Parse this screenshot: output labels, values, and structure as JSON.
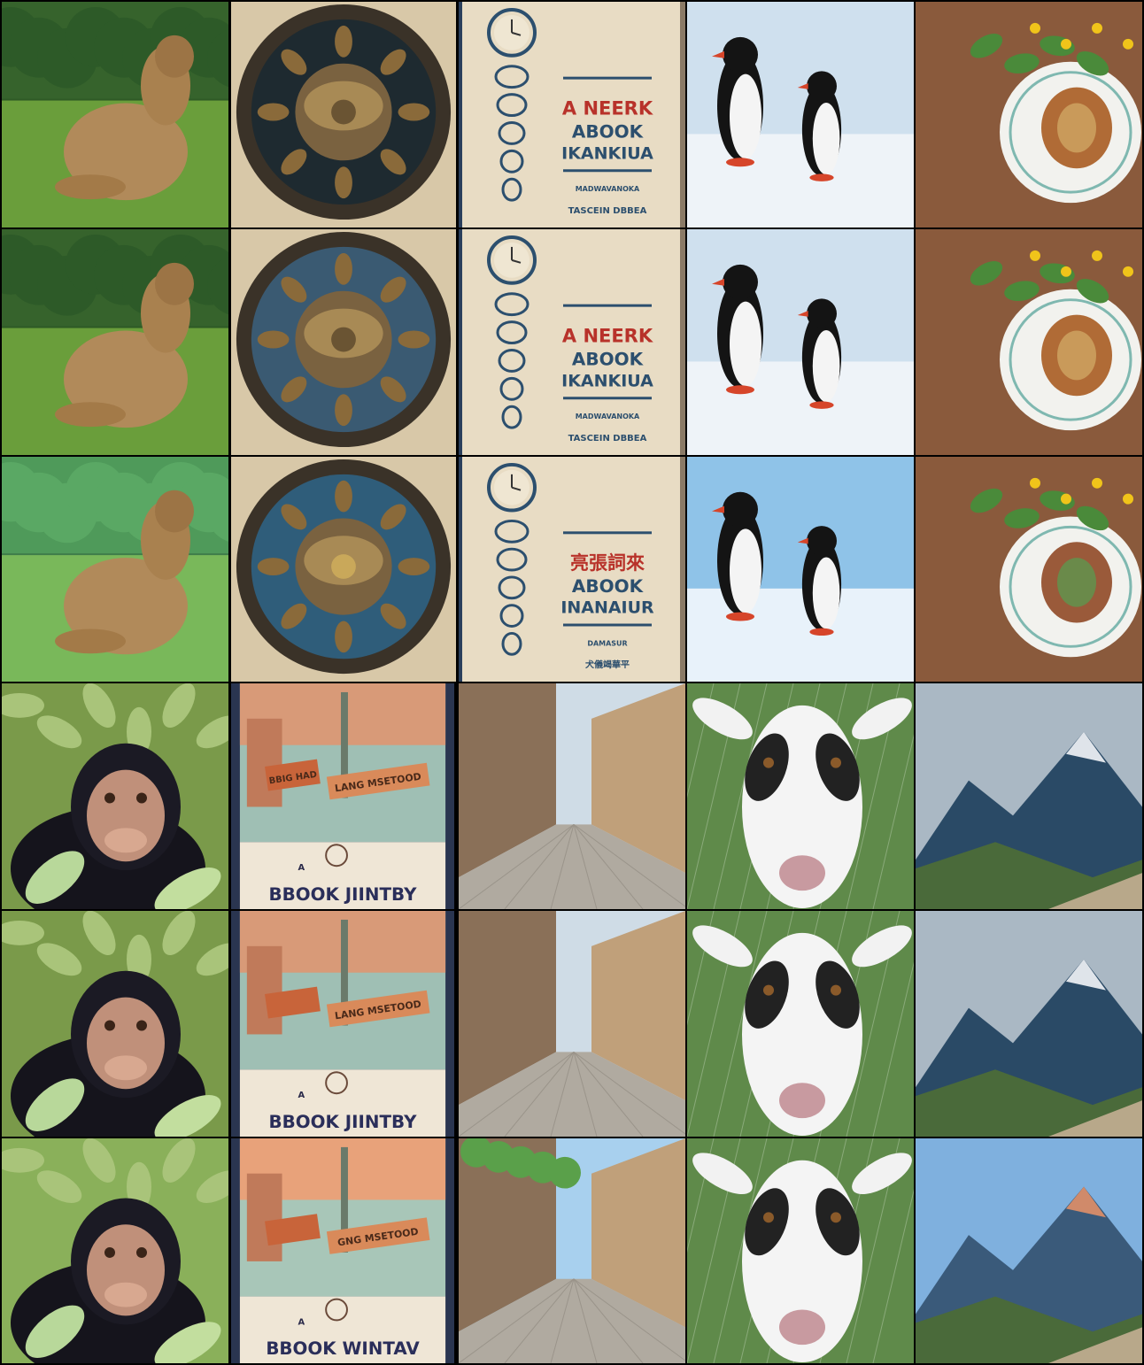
{
  "grid": {
    "rows": 6,
    "cols": 5,
    "groups": [
      {
        "rows": [
          "photo",
          "reconstruction",
          "stylized"
        ],
        "subjects": [
          "capybara",
          "door-knocker",
          "book-cover-clock",
          "penguins",
          "pastry-plate"
        ]
      },
      {
        "rows": [
          "photo",
          "reconstruction",
          "stylized"
        ],
        "subjects": [
          "chimpanzee",
          "book-cover-billboard",
          "city-street",
          "goat",
          "mountain"
        ]
      }
    ]
  },
  "book1": {
    "row1": {
      "line1": "A NEERK",
      "line2": "ABOOK",
      "line3": "IKANKIUA",
      "small1": "MADWAVANOKA",
      "small2": "TASCEIN DBBEA"
    },
    "row2": {
      "line1": "A NEERK",
      "line2": "ABOOK",
      "line3": "IKANKIUA",
      "small1": "MADWAVANOKA",
      "small2": "TASCEIN DBBEA"
    },
    "row3": {
      "line1": "亮張詞來",
      "line2": "ABOOK",
      "line3": "INANAIUR",
      "small1": "DAMASUR",
      "small2": "犬儀竭華平"
    }
  },
  "book2": {
    "row1": {
      "sign1": "BBIG HAD",
      "sign2": "LANG MSETOOD",
      "small": "A",
      "title": "BBOOK JIINTBY"
    },
    "row2": {
      "sign1": "",
      "sign2": "LANG MSETOOD",
      "small": "A",
      "title": "BBOOK JIINTBY"
    },
    "row3": {
      "sign1": "",
      "sign2": "GNG MSETOOD",
      "small": "A",
      "title": "BBOOK WINTAV"
    }
  }
}
